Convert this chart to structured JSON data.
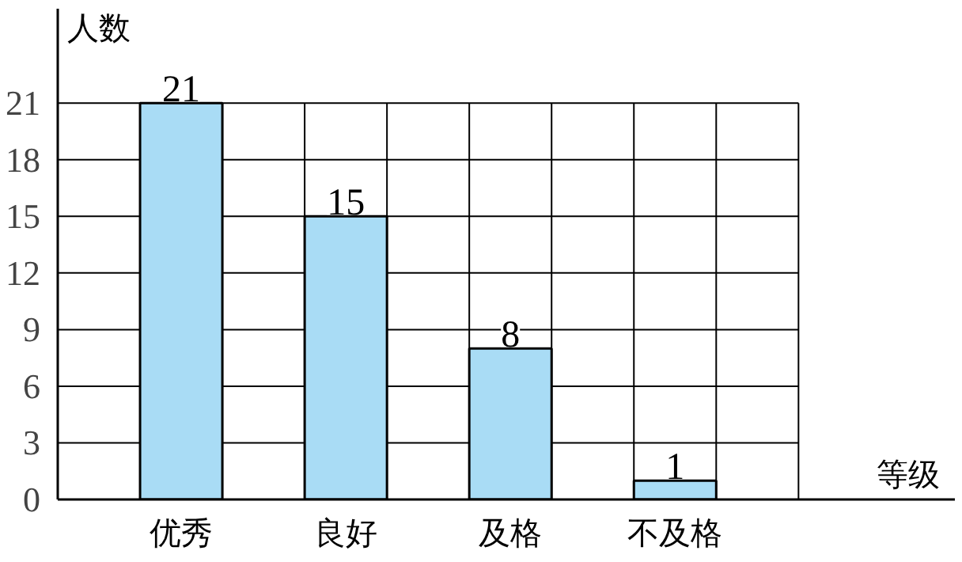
{
  "chart_data": {
    "type": "bar",
    "xlabel": "等级",
    "ylabel": "人数",
    "categories": [
      "优秀",
      "良好",
      "及格",
      "不及格"
    ],
    "values": [
      21,
      15,
      8,
      1
    ],
    "color": "#a9dcf5",
    "ylim": [
      0,
      26
    ],
    "yticks": [
      0,
      3,
      6,
      9,
      12,
      15,
      18,
      21
    ],
    "grid": true,
    "data_labels": true
  }
}
